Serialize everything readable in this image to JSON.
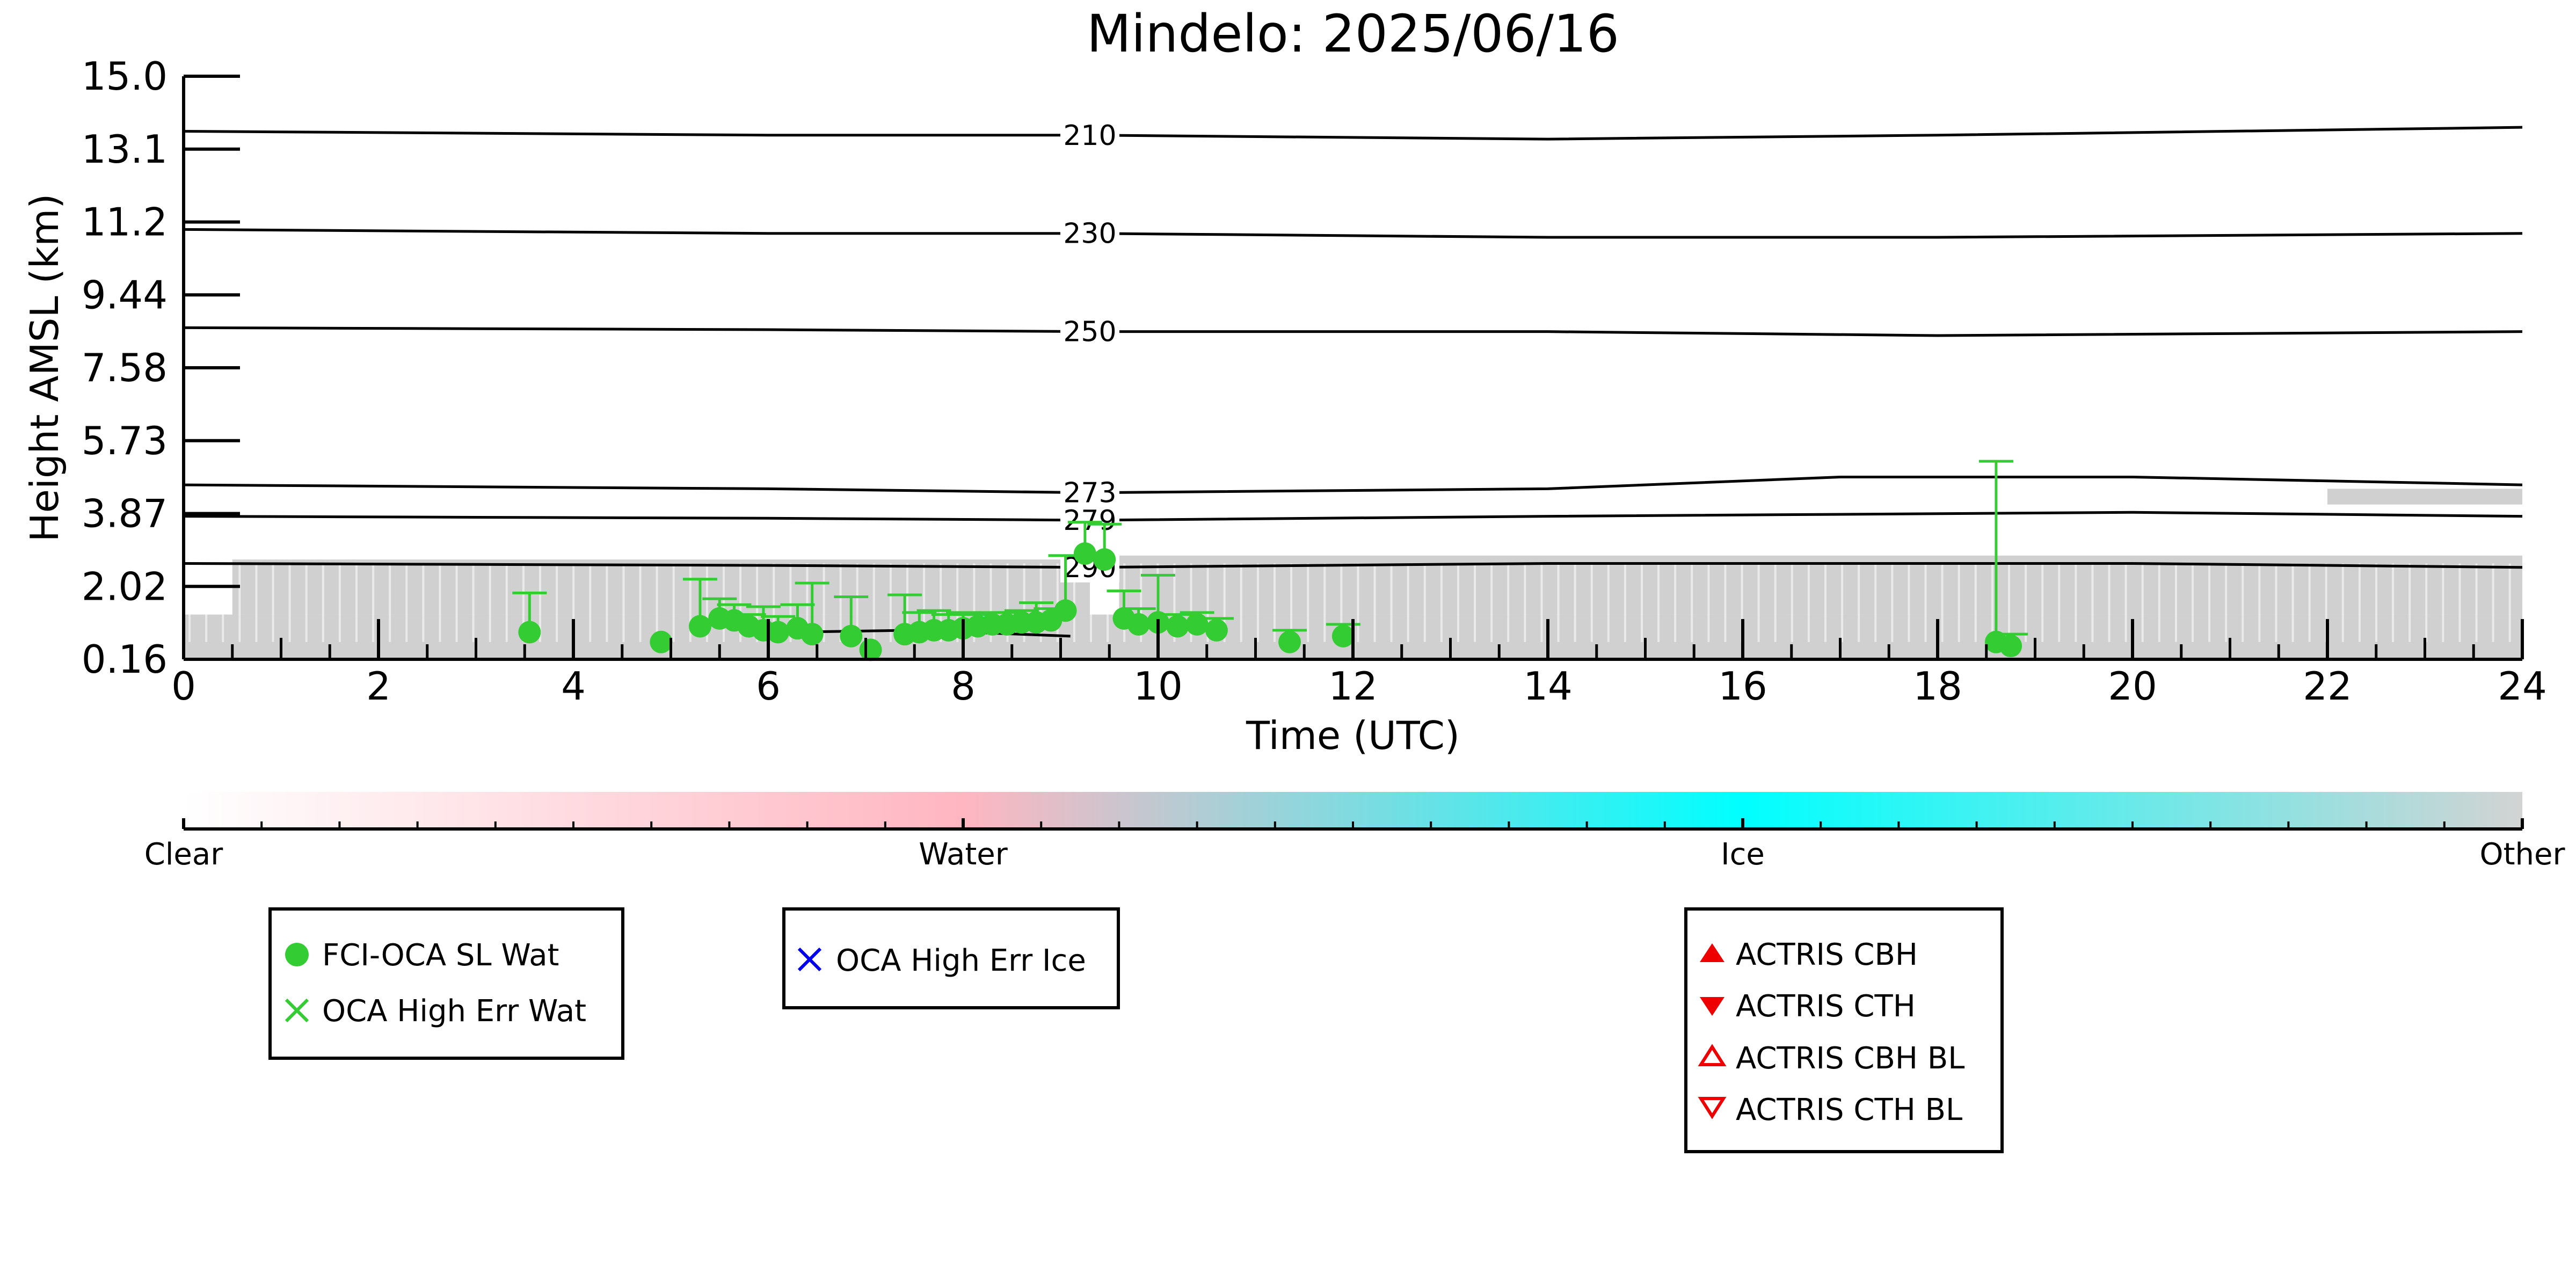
{
  "chart_data": {
    "type": "scatter",
    "title": "Mindelo: 2025/06/16",
    "xlabel": "Time (UTC)",
    "ylabel": "Height AMSL (km)",
    "xlim": [
      0,
      24
    ],
    "ylim": [
      0.16,
      15.0
    ],
    "x_ticks": [
      "0",
      "2",
      "4",
      "6",
      "8",
      "10",
      "12",
      "14",
      "16",
      "18",
      "20",
      "22",
      "24"
    ],
    "y_ticks": [
      "0.16",
      "2.02",
      "3.87",
      "5.73",
      "7.58",
      "9.44",
      "11.2",
      "13.1",
      "15.0"
    ],
    "grid": false,
    "background_cloud_mask": {
      "color": "#c8c8c8",
      "bands": [
        {
          "x": [
            0.5,
            9.3
          ],
          "y": [
            1.3,
            2.7
          ]
        },
        {
          "x": [
            9.6,
            24
          ],
          "y": [
            1.3,
            2.8
          ]
        },
        {
          "x": [
            0,
            24
          ],
          "y": [
            0.16,
            1.3
          ]
        },
        {
          "x": [
            22.0,
            24
          ],
          "y": [
            4.1,
            4.5
          ]
        }
      ]
    },
    "contours": [
      {
        "label": "210",
        "x": [
          0,
          6,
          9.3,
          14,
          18,
          24
        ],
        "y": [
          13.6,
          13.5,
          13.5,
          13.4,
          13.5,
          13.7
        ]
      },
      {
        "label": "230",
        "x": [
          0,
          6,
          9.3,
          14,
          18,
          24
        ],
        "y": [
          11.1,
          11.0,
          11.0,
          10.9,
          10.9,
          11.0
        ]
      },
      {
        "label": "250",
        "x": [
          0,
          6,
          9.3,
          14,
          18,
          24
        ],
        "y": [
          8.6,
          8.55,
          8.5,
          8.5,
          8.4,
          8.5
        ]
      },
      {
        "label": "273",
        "x": [
          0,
          6,
          9.3,
          14,
          17,
          20,
          24
        ],
        "y": [
          4.6,
          4.5,
          4.4,
          4.5,
          4.8,
          4.8,
          4.6
        ]
      },
      {
        "label": "279",
        "x": [
          0,
          6,
          9.3,
          14,
          20,
          24
        ],
        "y": [
          3.8,
          3.75,
          3.7,
          3.8,
          3.9,
          3.8
        ]
      },
      {
        "label": "290",
        "x": [
          0,
          6,
          9.3,
          14,
          20,
          24
        ],
        "y": [
          2.6,
          2.55,
          2.5,
          2.6,
          2.6,
          2.5
        ]
      },
      {
        "label": "",
        "x": [
          6.2,
          7.5,
          9.1
        ],
        "y": [
          0.85,
          0.9,
          0.75
        ]
      }
    ],
    "series": [
      {
        "name": "FCI-OCA SL Wat",
        "marker": "circle",
        "color": "#33cc33",
        "points": [
          {
            "x": 3.55,
            "y": 0.85,
            "err": 1.0
          },
          {
            "x": 4.9,
            "y": 0.6,
            "err": 0
          },
          {
            "x": 5.3,
            "y": 1.0,
            "err": 1.2
          },
          {
            "x": 5.5,
            "y": 1.2,
            "err": 0.5
          },
          {
            "x": 5.65,
            "y": 1.15,
            "err": 0.4
          },
          {
            "x": 5.8,
            "y": 1.0,
            "err": 0.3
          },
          {
            "x": 5.95,
            "y": 0.9,
            "err": 0.6
          },
          {
            "x": 6.1,
            "y": 0.85,
            "err": 0.4
          },
          {
            "x": 6.3,
            "y": 0.95,
            "err": 0.6
          },
          {
            "x": 6.45,
            "y": 0.8,
            "err": 1.3
          },
          {
            "x": 6.85,
            "y": 0.75,
            "err": 1.0
          },
          {
            "x": 7.05,
            "y": 0.4,
            "err": 0
          },
          {
            "x": 7.4,
            "y": 0.8,
            "err": 1.0
          },
          {
            "x": 7.55,
            "y": 0.85,
            "err": 0.5
          },
          {
            "x": 7.7,
            "y": 0.9,
            "err": 0.5
          },
          {
            "x": 7.85,
            "y": 0.9,
            "err": 0.4
          },
          {
            "x": 8.0,
            "y": 0.95,
            "err": 0.4
          },
          {
            "x": 8.15,
            "y": 1.0,
            "err": 0.3
          },
          {
            "x": 8.3,
            "y": 1.05,
            "err": 0.3
          },
          {
            "x": 8.45,
            "y": 1.05,
            "err": 0.3
          },
          {
            "x": 8.6,
            "y": 1.1,
            "err": 0.3
          },
          {
            "x": 8.75,
            "y": 1.1,
            "err": 0.5
          },
          {
            "x": 8.9,
            "y": 1.15,
            "err": 0.3
          },
          {
            "x": 9.05,
            "y": 1.4,
            "err": 1.4
          },
          {
            "x": 9.25,
            "y": 2.85,
            "err": 0.8
          },
          {
            "x": 9.45,
            "y": 2.7,
            "err": 0.9
          },
          {
            "x": 9.65,
            "y": 1.2,
            "err": 0.7
          },
          {
            "x": 9.8,
            "y": 1.05,
            "err": 0.4
          },
          {
            "x": 10.0,
            "y": 1.1,
            "err": 1.2
          },
          {
            "x": 10.2,
            "y": 1.0,
            "err": 0.3
          },
          {
            "x": 10.4,
            "y": 1.05,
            "err": 0.3
          },
          {
            "x": 10.6,
            "y": 0.9,
            "err": 0.3
          },
          {
            "x": 11.35,
            "y": 0.6,
            "err": 0.3
          },
          {
            "x": 11.9,
            "y": 0.75,
            "err": 0.3
          },
          {
            "x": 18.6,
            "y": 0.6,
            "err": 4.6
          },
          {
            "x": 18.75,
            "y": 0.5,
            "err": 0.3
          }
        ]
      },
      {
        "name": "OCA High Err Wat",
        "marker": "x",
        "color": "#33cc33",
        "points": []
      },
      {
        "name": "OCA High Err Ice",
        "marker": "x",
        "color": "#0000ee",
        "points": []
      },
      {
        "name": "ACTRIS CBH",
        "marker": "triangle-up",
        "color": "#ee0000",
        "points": []
      },
      {
        "name": "ACTRIS CTH",
        "marker": "triangle-down",
        "color": "#ee0000",
        "points": []
      },
      {
        "name": "ACTRIS CBH BL",
        "marker": "triangle-up-open",
        "color": "#ee0000",
        "points": []
      },
      {
        "name": "ACTRIS CTH BL",
        "marker": "triangle-down-open",
        "color": "#ee0000",
        "points": []
      }
    ],
    "colorbar": {
      "labels": [
        "Clear",
        "Water",
        "Ice",
        "Other"
      ],
      "colors": [
        "#ffffff",
        "#ffb6c1",
        "#00ffff",
        "#d3d3d3"
      ]
    },
    "legends": [
      {
        "entries": [
          "FCI-OCA SL Wat",
          "OCA High Err Wat"
        ]
      },
      {
        "entries": [
          "OCA High Err Ice"
        ]
      },
      {
        "entries": [
          "ACTRIS CBH",
          "ACTRIS CTH",
          "ACTRIS CBH BL",
          "ACTRIS CTH BL"
        ]
      }
    ]
  }
}
